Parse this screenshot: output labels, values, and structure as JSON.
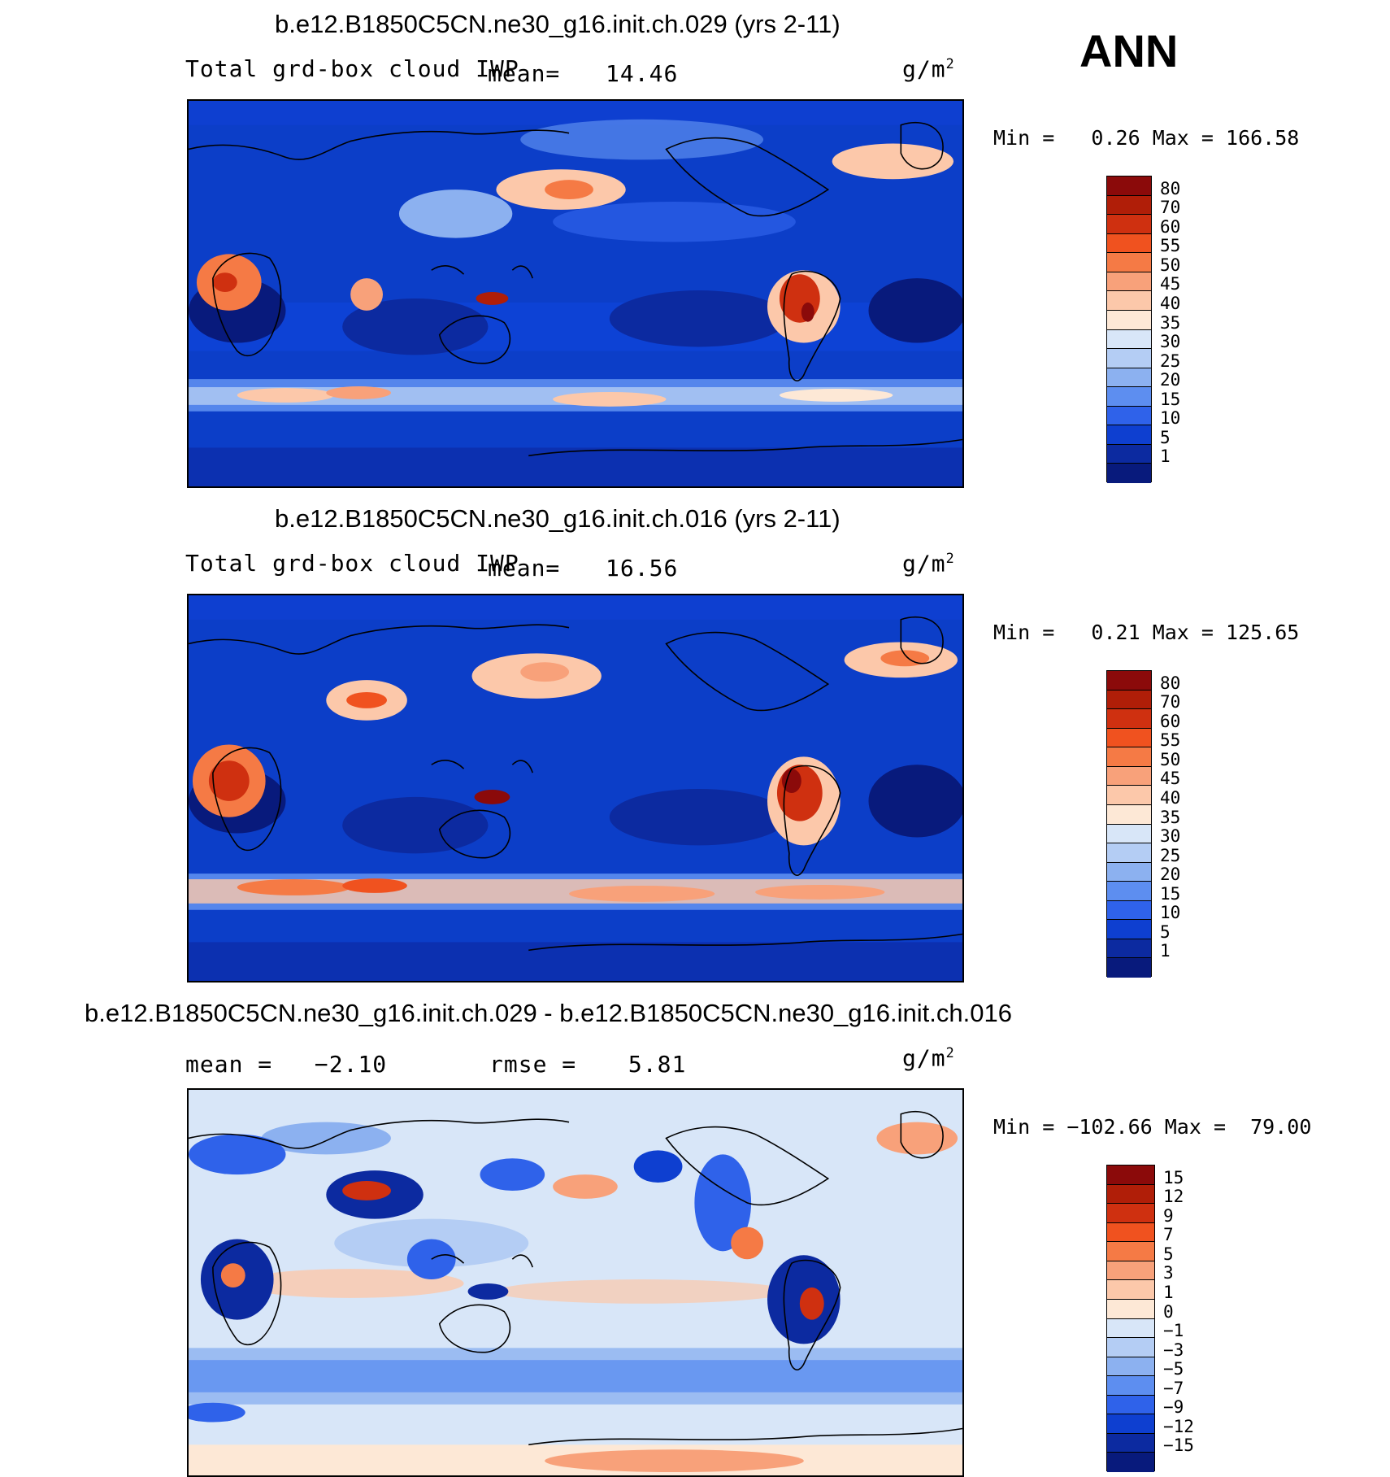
{
  "season": "ANN",
  "units_base": "g/m",
  "units_exp": "2",
  "panels": [
    {
      "title": "b.e12.B1850C5CN.ne30_g16.init.ch.029 (yrs 2-11)",
      "variable": "Total grd-box cloud IWP",
      "stat1_label": "mean=",
      "stat1_value": "14.46",
      "min_label": "Min =",
      "min_value": "0.26",
      "max_label": "Max =",
      "max_value": "166.58",
      "palette": "abs",
      "levels": [
        "80",
        "70",
        "60",
        "55",
        "50",
        "45",
        "40",
        "35",
        "30",
        "25",
        "20",
        "15",
        "10",
        "5",
        "1"
      ]
    },
    {
      "title": "b.e12.B1850C5CN.ne30_g16.init.ch.016 (yrs 2-11)",
      "variable": "Total grd-box cloud IWP",
      "stat1_label": "mean=",
      "stat1_value": "16.56",
      "min_label": "Min =",
      "min_value": "0.21",
      "max_label": "Max =",
      "max_value": "125.65",
      "palette": "abs",
      "levels": [
        "80",
        "70",
        "60",
        "55",
        "50",
        "45",
        "40",
        "35",
        "30",
        "25",
        "20",
        "15",
        "10",
        "5",
        "1"
      ]
    },
    {
      "title": "b.e12.B1850C5CN.ne30_g16.init.ch.029 - b.e12.B1850C5CN.ne30_g16.init.ch.016",
      "stat1_label": "mean =",
      "stat1_value": "−2.10",
      "stat2_label": "rmse =",
      "stat2_value": "5.81",
      "min_label": "Min =",
      "min_value": "−102.66",
      "max_label": "Max =",
      "max_value": "79.00",
      "palette": "diff",
      "levels": [
        "15",
        "12",
        "9",
        "7",
        "5",
        "3",
        "1",
        "0",
        "−1",
        "−3",
        "−5",
        "−7",
        "−9",
        "−12",
        "−15"
      ]
    }
  ],
  "colors": {
    "abs": [
      "#8b0a0a",
      "#b01e08",
      "#cf3010",
      "#f0521f",
      "#f57a45",
      "#f8a17a",
      "#fcc8aa",
      "#fde8d6",
      "#d8e6f8",
      "#b4cdf4",
      "#8cb1f0",
      "#5d8ef0",
      "#2f62ea",
      "#0e3fd0",
      "#0c2aa0",
      "#081a7c"
    ],
    "diff": [
      "#8b0a0a",
      "#b01e08",
      "#cf3010",
      "#f0521f",
      "#f57a45",
      "#f8a17a",
      "#fcc8aa",
      "#fde8d6",
      "#d8e6f8",
      "#b4cdf4",
      "#8cb1f0",
      "#5d8ef0",
      "#2f62ea",
      "#0e3fd0",
      "#0c2aa0",
      "#081a7c"
    ]
  }
}
